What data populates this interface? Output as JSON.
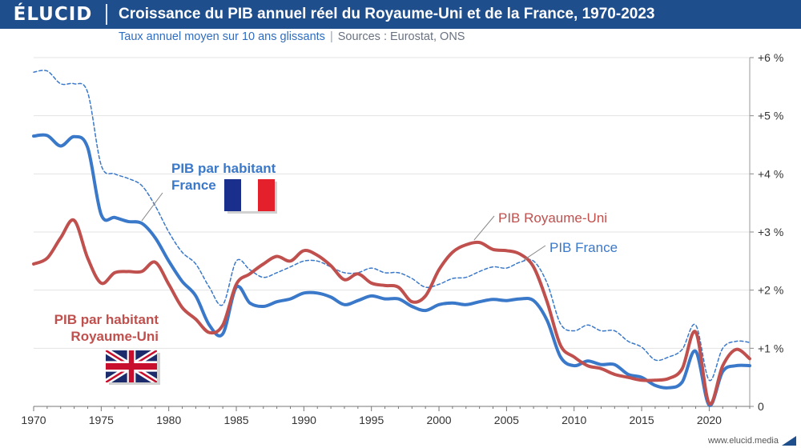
{
  "header": {
    "logo": "ÉLUCID",
    "title": "Croissance du PIB annuel réel du Royaume-Uni et de la France, 1970-2023",
    "subtitle": "Taux annuel moyen sur 10 ans glissants",
    "separator": "|",
    "sources": "Sources : Eurostat, ONS"
  },
  "footer": {
    "url": "www.elucid.media"
  },
  "colors": {
    "france": "#3a78c9",
    "uk": "#c0504d",
    "header": "#1f4e8c"
  },
  "chart_data": {
    "type": "line",
    "title": "Croissance du PIB annuel réel du Royaume-Uni et de la France, 1970-2023",
    "subtitle": "Taux annuel moyen sur 10 ans glissants",
    "xlim": [
      1970,
      2023
    ],
    "ylim": [
      0,
      6
    ],
    "grid": true,
    "x_ticks": [
      1970,
      1975,
      1980,
      1985,
      1990,
      1995,
      2000,
      2005,
      2010,
      2015,
      2020
    ],
    "x_tick_labels": [
      "1970",
      "1975",
      "1980",
      "1985",
      "1990",
      "1995",
      "2000",
      "2005",
      "2010",
      "2015",
      "2020"
    ],
    "y_ticks": [
      0,
      1,
      2,
      3,
      4,
      5,
      6
    ],
    "y_tick_labels": [
      "0",
      "+1 %",
      "+2 %",
      "+3 %",
      "+4 %",
      "+5 %",
      "+6 %"
    ],
    "x": [
      1970,
      1971,
      1972,
      1973,
      1974,
      1975,
      1976,
      1977,
      1978,
      1979,
      1980,
      1981,
      1982,
      1983,
      1984,
      1985,
      1986,
      1987,
      1988,
      1989,
      1990,
      1991,
      1992,
      1993,
      1994,
      1995,
      1996,
      1997,
      1998,
      1999,
      2000,
      2001,
      2002,
      2003,
      2004,
      2005,
      2006,
      2007,
      2008,
      2009,
      2010,
      2011,
      2012,
      2013,
      2014,
      2015,
      2016,
      2017,
      2018,
      2019,
      2020,
      2021,
      2022,
      2023
    ],
    "series": [
      {
        "name": "PIB France",
        "style": "dashed",
        "values": [
          5.75,
          5.77,
          5.55,
          5.55,
          5.4,
          4.15,
          4.0,
          3.92,
          3.8,
          3.45,
          3.0,
          2.65,
          2.45,
          2.05,
          1.75,
          2.5,
          2.35,
          2.22,
          2.3,
          2.4,
          2.5,
          2.5,
          2.4,
          2.3,
          2.3,
          2.38,
          2.3,
          2.3,
          2.2,
          2.05,
          2.1,
          2.2,
          2.22,
          2.32,
          2.4,
          2.38,
          2.48,
          2.5,
          2.12,
          1.42,
          1.3,
          1.4,
          1.3,
          1.3,
          1.12,
          1.02,
          0.8,
          0.85,
          0.98,
          1.4,
          0.45,
          1.0,
          1.12,
          1.1
        ]
      },
      {
        "name": "PIB par habitant France",
        "style": "solid",
        "values": [
          4.65,
          4.66,
          4.48,
          4.64,
          4.45,
          3.3,
          3.25,
          3.18,
          3.15,
          2.9,
          2.5,
          2.15,
          1.9,
          1.4,
          1.25,
          2.05,
          1.78,
          1.72,
          1.8,
          1.85,
          1.95,
          1.95,
          1.88,
          1.75,
          1.82,
          1.9,
          1.85,
          1.85,
          1.72,
          1.65,
          1.75,
          1.78,
          1.75,
          1.8,
          1.84,
          1.82,
          1.85,
          1.82,
          1.48,
          0.85,
          0.7,
          0.78,
          0.72,
          0.72,
          0.55,
          0.5,
          0.36,
          0.32,
          0.42,
          0.95,
          0.02,
          0.6,
          0.7,
          0.7
        ]
      },
      {
        "name": "PIB Royaume-Uni",
        "style": "solid",
        "values": [
          2.45,
          2.55,
          2.9,
          3.2,
          2.55,
          2.12,
          2.3,
          2.32,
          2.32,
          2.48,
          2.1,
          1.7,
          1.5,
          1.27,
          1.4,
          2.1,
          2.28,
          2.45,
          2.58,
          2.5,
          2.68,
          2.6,
          2.42,
          2.18,
          2.28,
          2.12,
          2.08,
          2.05,
          1.8,
          1.9,
          2.35,
          2.65,
          2.78,
          2.82,
          2.7,
          2.68,
          2.62,
          2.4,
          1.8,
          1.05,
          0.85,
          0.7,
          0.65,
          0.55,
          0.5,
          0.45,
          0.45,
          0.48,
          0.65,
          1.28,
          0.05,
          0.7,
          0.98,
          0.82
        ]
      }
    ],
    "annotations": [
      {
        "series": "PIB par habitant France",
        "lines": [
          "PIB par habitant",
          "France"
        ],
        "flag": "france"
      },
      {
        "series": "PIB Royaume-Uni",
        "lines": [
          "PIB Royaume-Uni"
        ]
      },
      {
        "series": "PIB France",
        "lines": [
          "PIB France"
        ]
      },
      {
        "series": "PIB par habitant Royaume-Uni",
        "lines": [
          "PIB par habitant",
          "Royaume-Uni"
        ],
        "flag": "uk"
      }
    ]
  }
}
